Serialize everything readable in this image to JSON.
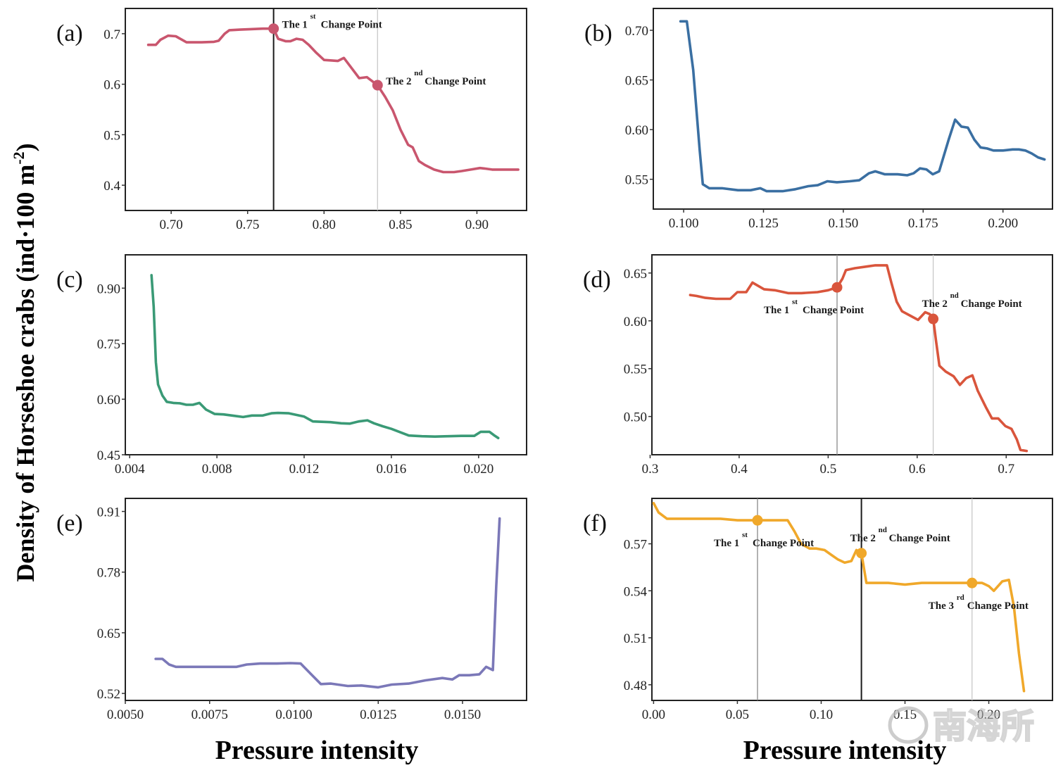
{
  "figure": {
    "ylabel": "Density of Horseshoe crabs  (ind·100 m",
    "ylabel_sup": "-2",
    "ylabel_close": ")",
    "xlabel_left": "Pressure intensity",
    "xlabel_right": "Pressure intensity",
    "watermark": "南海所"
  },
  "chart_data": [
    {
      "id": "a",
      "panel_label": "(a)",
      "type": "line",
      "color": "#c9566e",
      "xlim": [
        0.67,
        0.9325
      ],
      "ylim": [
        0.35,
        0.75
      ],
      "xticks": [
        0.7,
        0.75,
        0.8,
        0.85,
        0.9
      ],
      "xtick_labels": [
        "0.70",
        "0.75",
        "0.80",
        "0.85",
        "0.90"
      ],
      "yticks": [
        0.4,
        0.5,
        0.6,
        0.7
      ],
      "ytick_labels": [
        "0.4",
        "0.5",
        "0.6",
        "0.7"
      ],
      "x": [
        0.685,
        0.69,
        0.693,
        0.698,
        0.703,
        0.71,
        0.72,
        0.728,
        0.731,
        0.735,
        0.738,
        0.745,
        0.752,
        0.76,
        0.767,
        0.77,
        0.775,
        0.778,
        0.782,
        0.786,
        0.79,
        0.795,
        0.8,
        0.805,
        0.809,
        0.813,
        0.818,
        0.823,
        0.828,
        0.835,
        0.84,
        0.845,
        0.85,
        0.855,
        0.858,
        0.862,
        0.866,
        0.872,
        0.878,
        0.885,
        0.89,
        0.896,
        0.902,
        0.905,
        0.91,
        0.92,
        0.927
      ],
      "y": [
        0.678,
        0.678,
        0.688,
        0.696,
        0.695,
        0.683,
        0.683,
        0.684,
        0.686,
        0.7,
        0.707,
        0.708,
        0.709,
        0.71,
        0.71,
        0.69,
        0.685,
        0.685,
        0.69,
        0.688,
        0.678,
        0.662,
        0.648,
        0.647,
        0.646,
        0.652,
        0.632,
        0.612,
        0.614,
        0.598,
        0.575,
        0.548,
        0.51,
        0.48,
        0.475,
        0.448,
        0.44,
        0.431,
        0.426,
        0.426,
        0.428,
        0.431,
        0.434,
        0.433,
        0.431,
        0.431,
        0.431
      ],
      "vlines": [
        {
          "x": 0.767,
          "style": "dark"
        },
        {
          "x": 0.835,
          "style": "light"
        }
      ],
      "change_points": [
        {
          "x": 0.767,
          "y": 0.71,
          "ordinal": "1",
          "suffix": "st",
          "label_before": "The 1",
          "label_after": "Change Point",
          "label_pos": "right-up"
        },
        {
          "x": 0.835,
          "y": 0.598,
          "ordinal": "2",
          "suffix": "nd",
          "label_before": "The 2",
          "label_after": "Change Point",
          "label_pos": "right-up"
        }
      ]
    },
    {
      "id": "b",
      "panel_label": "(b)",
      "type": "line",
      "color": "#3a6fa2",
      "xlim": [
        0.0905,
        0.2155
      ],
      "ylim": [
        0.52,
        0.722
      ],
      "xticks": [
        0.1,
        0.125,
        0.15,
        0.175,
        0.2
      ],
      "xtick_labels": [
        "0.100",
        "0.125",
        "0.150",
        "0.175",
        "0.200"
      ],
      "yticks": [
        0.55,
        0.6,
        0.65,
        0.7
      ],
      "ytick_labels": [
        "0.55",
        "0.60",
        "0.65",
        "0.70"
      ],
      "x": [
        0.099,
        0.101,
        0.103,
        0.105,
        0.106,
        0.108,
        0.112,
        0.117,
        0.121,
        0.124,
        0.126,
        0.131,
        0.135,
        0.139,
        0.142,
        0.145,
        0.148,
        0.152,
        0.155,
        0.158,
        0.16,
        0.163,
        0.167,
        0.17,
        0.172,
        0.174,
        0.176,
        0.178,
        0.18,
        0.183,
        0.185,
        0.187,
        0.189,
        0.191,
        0.193,
        0.195,
        0.197,
        0.2,
        0.203,
        0.205,
        0.207,
        0.209,
        0.211,
        0.213
      ],
      "y": [
        0.709,
        0.709,
        0.66,
        0.58,
        0.545,
        0.541,
        0.541,
        0.539,
        0.539,
        0.541,
        0.538,
        0.538,
        0.54,
        0.543,
        0.544,
        0.548,
        0.547,
        0.548,
        0.549,
        0.556,
        0.558,
        0.555,
        0.555,
        0.554,
        0.556,
        0.561,
        0.56,
        0.555,
        0.558,
        0.59,
        0.61,
        0.603,
        0.602,
        0.59,
        0.582,
        0.581,
        0.579,
        0.579,
        0.58,
        0.58,
        0.579,
        0.576,
        0.572,
        0.57
      ],
      "vlines": [],
      "change_points": []
    },
    {
      "id": "c",
      "panel_label": "(c)",
      "type": "line",
      "color": "#3a9a76",
      "xlim": [
        0.0038,
        0.0222
      ],
      "ylim": [
        0.45,
        0.99
      ],
      "xticks": [
        0.004,
        0.008,
        0.012,
        0.016,
        0.02
      ],
      "xtick_labels": [
        "0.004",
        "0.008",
        "0.012",
        "0.016",
        "0.020"
      ],
      "yticks": [
        0.45,
        0.6,
        0.75,
        0.9
      ],
      "ytick_labels": [
        "0.45",
        "0.60",
        "0.75",
        "0.90"
      ],
      "x": [
        0.005,
        0.0051,
        0.0052,
        0.0053,
        0.0055,
        0.0057,
        0.006,
        0.0063,
        0.0066,
        0.0069,
        0.0072,
        0.0075,
        0.0079,
        0.0083,
        0.0087,
        0.0092,
        0.0096,
        0.0101,
        0.0105,
        0.0108,
        0.0113,
        0.0117,
        0.012,
        0.0124,
        0.0128,
        0.0132,
        0.0137,
        0.0141,
        0.0145,
        0.0149,
        0.0152,
        0.0156,
        0.016,
        0.0164,
        0.0168,
        0.0174,
        0.018,
        0.0186,
        0.0192,
        0.0198,
        0.0201,
        0.0205,
        0.0207,
        0.0209
      ],
      "y": [
        0.935,
        0.85,
        0.7,
        0.64,
        0.61,
        0.593,
        0.59,
        0.589,
        0.585,
        0.585,
        0.59,
        0.572,
        0.56,
        0.559,
        0.556,
        0.552,
        0.556,
        0.556,
        0.562,
        0.563,
        0.562,
        0.557,
        0.553,
        0.54,
        0.539,
        0.538,
        0.535,
        0.534,
        0.54,
        0.543,
        0.535,
        0.527,
        0.52,
        0.511,
        0.502,
        0.5,
        0.499,
        0.5,
        0.501,
        0.501,
        0.512,
        0.512,
        0.503,
        0.495
      ],
      "vlines": [],
      "change_points": []
    },
    {
      "id": "d",
      "panel_label": "(d)",
      "type": "line",
      "color": "#d9553c",
      "xlim": [
        0.302,
        0.752
      ],
      "ylim": [
        0.46,
        0.669
      ],
      "xticks": [
        0.3,
        0.4,
        0.5,
        0.6,
        0.7
      ],
      "xtick_labels": [
        "0.3",
        "0.4",
        "0.5",
        "0.6",
        "0.7"
      ],
      "yticks": [
        0.5,
        0.55,
        0.6,
        0.65
      ],
      "ytick_labels": [
        "0.50",
        "0.55",
        "0.60",
        "0.65"
      ],
      "x": [
        0.345,
        0.352,
        0.362,
        0.374,
        0.39,
        0.398,
        0.408,
        0.415,
        0.428,
        0.44,
        0.455,
        0.47,
        0.488,
        0.5,
        0.51,
        0.516,
        0.52,
        0.53,
        0.545,
        0.553,
        0.562,
        0.566,
        0.571,
        0.577,
        0.583,
        0.593,
        0.601,
        0.609,
        0.614,
        0.618,
        0.621,
        0.625,
        0.632,
        0.641,
        0.648,
        0.655,
        0.662,
        0.668,
        0.677,
        0.684,
        0.691,
        0.699,
        0.706,
        0.712,
        0.716,
        0.723
      ],
      "y": [
        0.627,
        0.626,
        0.624,
        0.623,
        0.623,
        0.63,
        0.63,
        0.64,
        0.633,
        0.632,
        0.629,
        0.629,
        0.63,
        0.632,
        0.635,
        0.644,
        0.653,
        0.655,
        0.657,
        0.658,
        0.658,
        0.658,
        0.64,
        0.62,
        0.61,
        0.605,
        0.601,
        0.609,
        0.607,
        0.602,
        0.58,
        0.553,
        0.547,
        0.542,
        0.533,
        0.54,
        0.543,
        0.527,
        0.51,
        0.498,
        0.498,
        0.49,
        0.487,
        0.476,
        0.465,
        0.464
      ],
      "vlines": [
        {
          "x": 0.51,
          "style": "mid"
        },
        {
          "x": 0.618,
          "style": "light"
        }
      ],
      "change_points": [
        {
          "x": 0.51,
          "y": 0.635,
          "ordinal": "1",
          "suffix": "st",
          "label_before": "The 1",
          "label_after": "Change Point",
          "label_pos": "below-left"
        },
        {
          "x": 0.618,
          "y": 0.602,
          "ordinal": "2",
          "suffix": "nd",
          "label_before": "The 2",
          "label_after": "Change Point",
          "label_pos": "above-right"
        }
      ]
    },
    {
      "id": "e",
      "panel_label": "(e)",
      "type": "line",
      "color": "#7b78b8",
      "xlim": [
        0.005,
        0.0169
      ],
      "ylim": [
        0.505,
        0.938
      ],
      "xticks": [
        0.005,
        0.0075,
        0.01,
        0.0125,
        0.015
      ],
      "xtick_labels": [
        "0.0050",
        "0.0075",
        "0.0100",
        "0.0125",
        "0.0150"
      ],
      "yticks": [
        0.52,
        0.65,
        0.78,
        0.91
      ],
      "ytick_labels": [
        "0.52",
        "0.65",
        "0.78",
        "0.91"
      ],
      "x": [
        0.0059,
        0.0061,
        0.0063,
        0.0065,
        0.007,
        0.0078,
        0.0083,
        0.0086,
        0.009,
        0.0095,
        0.0099,
        0.0102,
        0.0105,
        0.0108,
        0.0111,
        0.0116,
        0.012,
        0.0125,
        0.0129,
        0.0134,
        0.0139,
        0.0144,
        0.0147,
        0.0149,
        0.0152,
        0.0155,
        0.0157,
        0.0159,
        0.016,
        0.0161
      ],
      "y": [
        0.594,
        0.594,
        0.582,
        0.577,
        0.577,
        0.577,
        0.577,
        0.582,
        0.584,
        0.584,
        0.585,
        0.584,
        0.562,
        0.54,
        0.541,
        0.536,
        0.537,
        0.533,
        0.539,
        0.541,
        0.548,
        0.553,
        0.55,
        0.559,
        0.559,
        0.561,
        0.577,
        0.57,
        0.75,
        0.895
      ],
      "vlines": [],
      "change_points": []
    },
    {
      "id": "f",
      "panel_label": "(f)",
      "type": "line",
      "color": "#f0a82a",
      "xlim": [
        -0.001,
        0.238
      ],
      "ylim": [
        0.47,
        0.599
      ],
      "xticks": [
        0.0,
        0.05,
        0.1,
        0.15,
        0.2
      ],
      "xtick_labels": [
        "0.00",
        "0.05",
        "0.10",
        "0.15",
        "0.20"
      ],
      "yticks": [
        0.48,
        0.51,
        0.54,
        0.57
      ],
      "ytick_labels": [
        "0.48",
        "0.51",
        "0.54",
        "0.57"
      ],
      "x": [
        0.0,
        0.003,
        0.008,
        0.02,
        0.04,
        0.05,
        0.055,
        0.062,
        0.068,
        0.074,
        0.08,
        0.084,
        0.088,
        0.093,
        0.097,
        0.102,
        0.106,
        0.11,
        0.114,
        0.118,
        0.121,
        0.124,
        0.127,
        0.13,
        0.14,
        0.15,
        0.16,
        0.17,
        0.18,
        0.19,
        0.196,
        0.2,
        0.203,
        0.208,
        0.212,
        0.215,
        0.218,
        0.221
      ],
      "y": [
        0.596,
        0.59,
        0.586,
        0.586,
        0.586,
        0.585,
        0.585,
        0.585,
        0.585,
        0.585,
        0.585,
        0.578,
        0.57,
        0.567,
        0.567,
        0.566,
        0.563,
        0.56,
        0.558,
        0.559,
        0.566,
        0.564,
        0.545,
        0.545,
        0.545,
        0.544,
        0.545,
        0.545,
        0.545,
        0.545,
        0.545,
        0.543,
        0.54,
        0.546,
        0.547,
        0.53,
        0.5,
        0.476
      ],
      "vlines": [
        {
          "x": 0.062,
          "style": "mid"
        },
        {
          "x": 0.124,
          "style": "dark"
        },
        {
          "x": 0.19,
          "style": "light"
        }
      ],
      "change_points": [
        {
          "x": 0.062,
          "y": 0.585,
          "ordinal": "1",
          "suffix": "st",
          "label_before": "The 1",
          "label_after": "Change Point",
          "label_pos": "below-center"
        },
        {
          "x": 0.124,
          "y": 0.564,
          "ordinal": "2",
          "suffix": "nd",
          "label_before": "The 2",
          "label_after": "Change Point",
          "label_pos": "above-right"
        },
        {
          "x": 0.19,
          "y": 0.545,
          "ordinal": "3",
          "suffix": "rd",
          "label_before": "The 3",
          "label_after": "Change Point",
          "label_pos": "below-center"
        }
      ]
    }
  ]
}
